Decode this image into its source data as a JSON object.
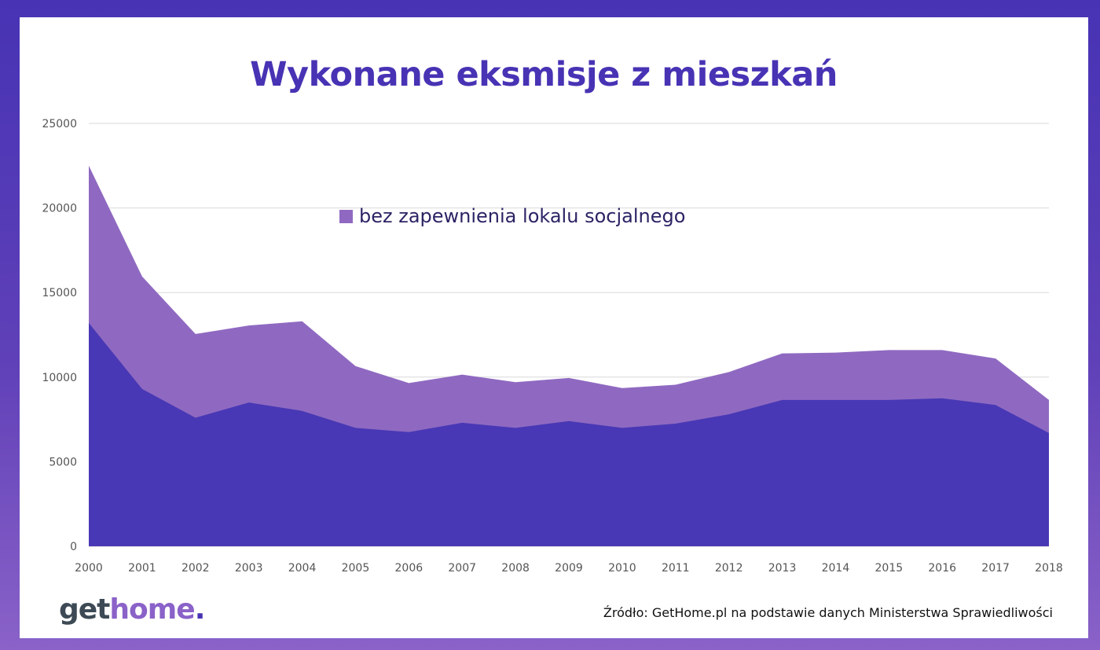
{
  "title": "Wykonane eksmisje z mieszkań",
  "source": "Źródło: GetHome.pl na podstawie danych Ministerstwa Sprawiedliwości",
  "logo": {
    "part1": "get",
    "part2": "home",
    "part3": "."
  },
  "colors": {
    "background": "#4733b4",
    "title": "#4733b4",
    "series_total": "#8f69c1",
    "series_lower": "#4838b5"
  },
  "chart_data": {
    "type": "area",
    "x": [
      "2000",
      "2001",
      "2002",
      "2003",
      "2004",
      "2005",
      "2006",
      "2007",
      "2008",
      "2009",
      "2010",
      "2011",
      "2012",
      "2013",
      "2014",
      "2015",
      "2016",
      "2017",
      "2018"
    ],
    "series": [
      {
        "name": "",
        "values": [
          13200,
          9300,
          7600,
          8500,
          8000,
          7000,
          6750,
          7300,
          7000,
          7400,
          7000,
          7250,
          7800,
          8650,
          8650,
          8650,
          8750,
          8350,
          6700
        ],
        "color": "#4838b5"
      },
      {
        "name": "bez zapewnienia lokalu socjalnego",
        "values": [
          9300,
          6650,
          4950,
          4550,
          5300,
          3650,
          2900,
          2850,
          2700,
          2550,
          2350,
          2300,
          2500,
          2750,
          2800,
          2950,
          2850,
          2750,
          1950
        ],
        "color": "#8f69c1"
      }
    ],
    "stacked": true,
    "ylim": [
      0,
      25000
    ],
    "yticks": [
      "0",
      "5000",
      "10000",
      "15000",
      "20000",
      "25000"
    ],
    "grid": true,
    "legend": "top-center"
  }
}
